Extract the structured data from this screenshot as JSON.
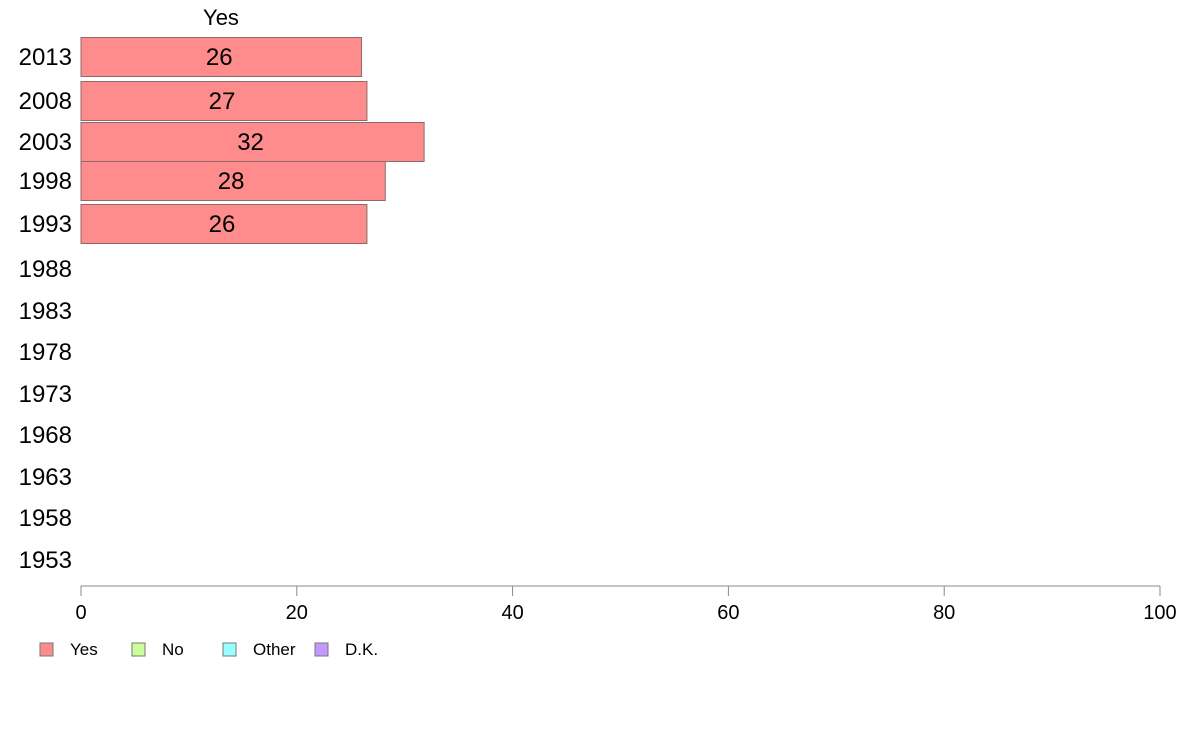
{
  "chart_data": {
    "type": "bar",
    "orientation": "horizontal",
    "stacked": true,
    "categories": [
      "2013",
      "2008",
      "2003",
      "1998",
      "1993",
      "1988",
      "1983",
      "1978",
      "1973",
      "1968",
      "1963",
      "1958",
      "1953"
    ],
    "series": [
      {
        "name": "Yes",
        "color": "#ff8c8c",
        "values": [
          26,
          26.5,
          31.8,
          28.2,
          26.5,
          null,
          null,
          null,
          null,
          null,
          null,
          null,
          null
        ],
        "labels": [
          "26",
          "27",
          "32",
          "28",
          "26",
          "",
          "",
          "",
          "",
          "",
          "",
          "",
          ""
        ]
      },
      {
        "name": "No",
        "color": "#ccff99",
        "values": [
          null,
          null,
          null,
          null,
          null,
          null,
          null,
          null,
          null,
          null,
          null,
          null,
          null
        ]
      },
      {
        "name": "Other",
        "color": "#99ffff",
        "values": [
          null,
          null,
          null,
          null,
          null,
          null,
          null,
          null,
          null,
          null,
          null,
          null,
          null
        ]
      },
      {
        "name": "D.K.",
        "color": "#c299ff",
        "values": [
          null,
          null,
          null,
          null,
          null,
          null,
          null,
          null,
          null,
          null,
          null,
          null,
          null
        ]
      }
    ],
    "column_header": "Yes",
    "xlim": [
      0,
      100
    ],
    "xticks": [
      "0",
      "20",
      "40",
      "60",
      "80",
      "100"
    ],
    "legend_position": "bottom-left",
    "grid": false
  }
}
